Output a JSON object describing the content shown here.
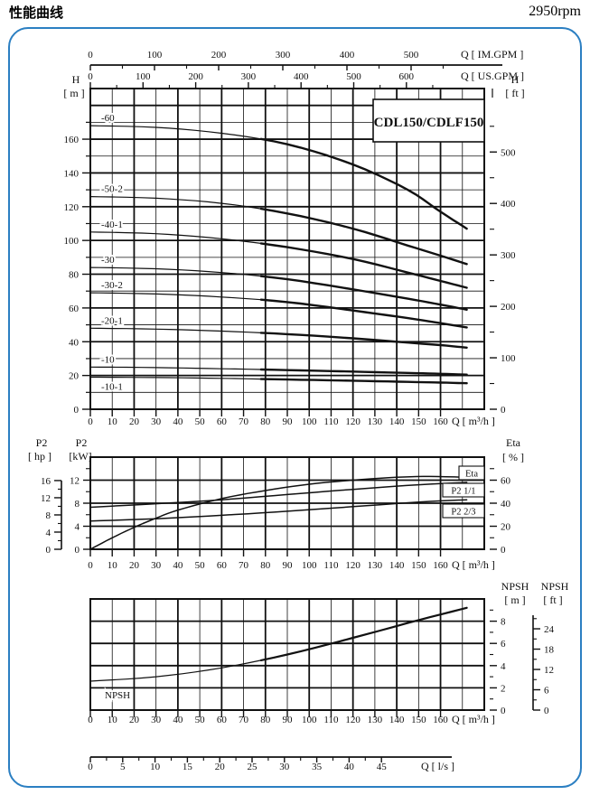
{
  "header": {
    "title": "性能曲线",
    "rpm": "2950rpm"
  },
  "accent_color": "#2b7fc2",
  "chart_data": [
    {
      "id": "head-chart",
      "type": "line",
      "title": "CDL150/CDLF150",
      "xlabel": "Q [ m³/h ]",
      "xlim": [
        0,
        180
      ],
      "x_ticks": [
        0,
        10,
        20,
        30,
        40,
        50,
        60,
        70,
        80,
        90,
        100,
        110,
        120,
        130,
        140,
        150,
        160
      ],
      "left_axis": {
        "name": "H",
        "unit": "[ m ]",
        "lim": [
          0,
          190
        ],
        "ticks": [
          0,
          20,
          40,
          60,
          80,
          100,
          120,
          140,
          160
        ]
      },
      "right_axis": {
        "name": "H",
        "unit": "[ ft ]",
        "ticks": [
          0,
          100,
          200,
          300,
          400,
          500
        ]
      },
      "top_axes": [
        {
          "label": "Q [ IM.GPM ]",
          "ticks": [
            0,
            100,
            200,
            300,
            400,
            500
          ]
        },
        {
          "label": "Q [ US.GPM ]",
          "ticks": [
            0,
            100,
            200,
            300,
            400,
            500,
            600
          ]
        }
      ],
      "series": [
        {
          "name": "-60",
          "label_side": "above",
          "points": [
            [
              0,
              168
            ],
            [
              30,
              167
            ],
            [
              60,
              163.5
            ],
            [
              90,
              157
            ],
            [
              120,
              145
            ],
            [
              145,
              130
            ],
            [
              160,
              117
            ],
            [
              172,
              107
            ]
          ]
        },
        {
          "name": "-50-2",
          "label_side": "above",
          "points": [
            [
              0,
              126
            ],
            [
              30,
              125
            ],
            [
              60,
              122
            ],
            [
              90,
              116
            ],
            [
              120,
              107
            ],
            [
              145,
              97
            ],
            [
              160,
              91
            ],
            [
              172,
              86
            ]
          ]
        },
        {
          "name": "-40-1",
          "label_side": "above",
          "points": [
            [
              0,
              105
            ],
            [
              30,
              104
            ],
            [
              60,
              101
            ],
            [
              90,
              96
            ],
            [
              120,
              89
            ],
            [
              145,
              81
            ],
            [
              160,
              76
            ],
            [
              172,
              72
            ]
          ]
        },
        {
          "name": "-30",
          "label_side": "above",
          "points": [
            [
              0,
              84
            ],
            [
              30,
              83.2
            ],
            [
              60,
              81
            ],
            [
              90,
              77
            ],
            [
              120,
              71
            ],
            [
              145,
              65.5
            ],
            [
              160,
              62
            ],
            [
              172,
              59
            ]
          ]
        },
        {
          "name": "-30-2",
          "label_side": "above",
          "points": [
            [
              0,
              69
            ],
            [
              30,
              68.3
            ],
            [
              60,
              66.5
            ],
            [
              90,
              63.5
            ],
            [
              120,
              58.5
            ],
            [
              145,
              54
            ],
            [
              160,
              51
            ],
            [
              172,
              48.5
            ]
          ]
        },
        {
          "name": "-20-1",
          "label_side": "above",
          "points": [
            [
              0,
              48
            ],
            [
              30,
              47.5
            ],
            [
              60,
              46.3
            ],
            [
              90,
              44.5
            ],
            [
              120,
              42
            ],
            [
              145,
              39.5
            ],
            [
              160,
              38
            ],
            [
              172,
              36.5
            ]
          ]
        },
        {
          "name": "-10",
          "label_side": "above",
          "points": [
            [
              0,
              25
            ],
            [
              30,
              24.7
            ],
            [
              60,
              24
            ],
            [
              90,
              23.2
            ],
            [
              120,
              22.3
            ],
            [
              145,
              21.5
            ],
            [
              160,
              21
            ],
            [
              172,
              20.5
            ]
          ]
        },
        {
          "name": "-10-1",
          "label_side": "below",
          "points": [
            [
              0,
              19
            ],
            [
              30,
              18.8
            ],
            [
              60,
              18.3
            ],
            [
              90,
              17.6
            ],
            [
              120,
              16.9
            ],
            [
              145,
              16.2
            ],
            [
              160,
              15.8
            ],
            [
              172,
              15.4
            ]
          ]
        }
      ]
    },
    {
      "id": "power-eta-chart",
      "type": "line",
      "xlabel": "Q [ m³/h ]",
      "xlim": [
        0,
        180
      ],
      "x_ticks": [
        0,
        10,
        20,
        30,
        40,
        50,
        60,
        70,
        80,
        90,
        100,
        110,
        120,
        130,
        140,
        150,
        160
      ],
      "left_axis_hp": {
        "name": "P2",
        "unit": "[ hp ]",
        "ticks": [
          0,
          4,
          8,
          12,
          16
        ]
      },
      "left_axis_kw": {
        "name": "P2",
        "unit": "[kW]",
        "lim": [
          0,
          16
        ],
        "ticks": [
          0,
          4,
          8,
          12
        ]
      },
      "right_axis": {
        "name": "Eta",
        "unit": "[ % ]",
        "lim": [
          0,
          80
        ],
        "ticks": [
          0,
          20,
          40,
          60
        ]
      },
      "series": [
        {
          "name": "Eta",
          "axis": "pct",
          "points": [
            [
              0,
              0
            ],
            [
              10,
              10
            ],
            [
              20,
              19
            ],
            [
              30,
              27
            ],
            [
              40,
              34
            ],
            [
              60,
              44
            ],
            [
              80,
              51
            ],
            [
              100,
              56.5
            ],
            [
              120,
              60
            ],
            [
              140,
              62.5
            ],
            [
              155,
              63.2
            ],
            [
              172,
              62.5
            ]
          ]
        },
        {
          "name": "P2  1/1",
          "axis": "kw",
          "points": [
            [
              0,
              7.3
            ],
            [
              30,
              7.9
            ],
            [
              60,
              8.6
            ],
            [
              90,
              9.5
            ],
            [
              120,
              10.4
            ],
            [
              150,
              11.2
            ],
            [
              172,
              11.6
            ]
          ]
        },
        {
          "name": "P2  2/3",
          "axis": "kw",
          "points": [
            [
              0,
              4.9
            ],
            [
              30,
              5.3
            ],
            [
              60,
              5.9
            ],
            [
              90,
              6.6
            ],
            [
              120,
              7.4
            ],
            [
              150,
              8.2
            ],
            [
              172,
              8.6
            ]
          ]
        }
      ],
      "legend_boxes": [
        "Eta",
        "P2  1/1",
        "P2  2/3"
      ]
    },
    {
      "id": "npsh-chart",
      "type": "line",
      "xlabel": "Q [ m³/h ]",
      "xlim": [
        0,
        180
      ],
      "x_ticks": [
        0,
        10,
        20,
        30,
        40,
        50,
        60,
        70,
        80,
        90,
        100,
        110,
        120,
        130,
        140,
        150,
        160
      ],
      "right_axis_m": {
        "name": "NPSH",
        "unit": "[ m ]",
        "lim": [
          0,
          10
        ],
        "ticks": [
          0,
          2,
          4,
          6,
          8
        ]
      },
      "right_axis_ft": {
        "name": "NPSH",
        "unit": "[ ft ]",
        "ticks": [
          0,
          6,
          12,
          18,
          24
        ]
      },
      "curve_label": "NPSH",
      "series": [
        {
          "name": "NPSH",
          "points": [
            [
              0,
              2.6
            ],
            [
              30,
              3.0
            ],
            [
              60,
              3.8
            ],
            [
              90,
              5.0
            ],
            [
              120,
              6.5
            ],
            [
              150,
              8.1
            ],
            [
              172,
              9.2
            ]
          ]
        }
      ]
    },
    {
      "id": "ls-axis",
      "type": "axis",
      "label": "Q [ l/s ]",
      "ticks": [
        0,
        5,
        10,
        15,
        20,
        25,
        30,
        35,
        40,
        45
      ]
    }
  ]
}
